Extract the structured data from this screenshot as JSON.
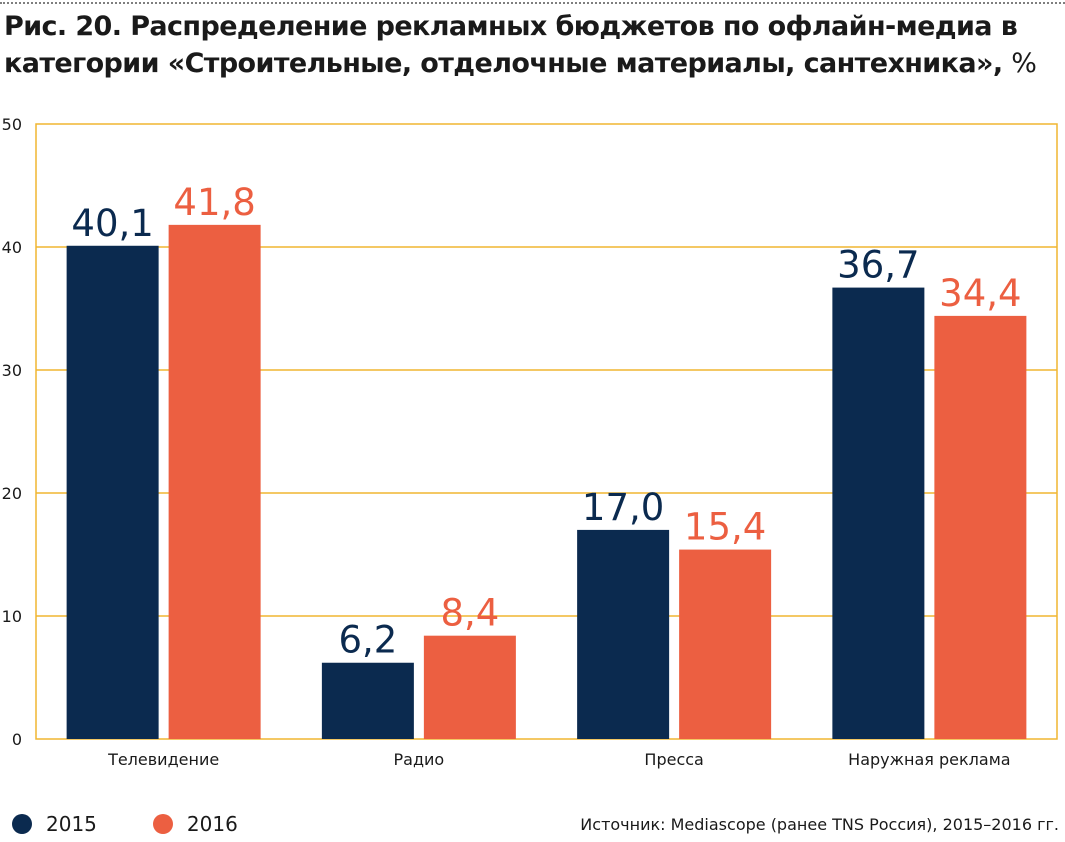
{
  "title": {
    "text": "Рис. 20. Распределение рекламных бюджетов по офлайн-медиа в категории «Строительные, отделочные материалы, сантехника»,",
    "unit": "%"
  },
  "colors": {
    "series_2015": "#0b2a4f",
    "series_2016": "#ec5f41",
    "grid": "#f0b531",
    "text": "#1a1a1a"
  },
  "chart_data": {
    "type": "bar",
    "categories": [
      "Телевидение",
      "Радио",
      "Пресса",
      "Наружная реклама"
    ],
    "series": [
      {
        "name": "2015",
        "values": [
          40.1,
          6.2,
          17.0,
          36.7
        ],
        "labels": [
          "40,1",
          "6,2",
          "17,0",
          "36,7"
        ]
      },
      {
        "name": "2016",
        "values": [
          41.8,
          8.4,
          15.4,
          34.4
        ],
        "labels": [
          "41,8",
          "8,4",
          "15,4",
          "34,4"
        ]
      }
    ],
    "ylim": [
      0,
      50
    ],
    "yticks": [
      0,
      10,
      20,
      30,
      40,
      50
    ],
    "grid": true,
    "legend_position": "bottom-left"
  },
  "legend": {
    "items": [
      {
        "label": "2015"
      },
      {
        "label": "2016"
      }
    ]
  },
  "source": "Источник: Mediascope (ранее TNS Россия), 2015–2016 гг."
}
